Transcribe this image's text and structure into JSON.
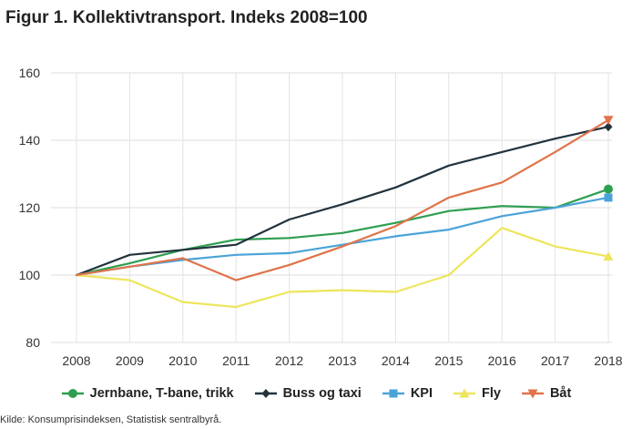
{
  "chart_data": {
    "type": "line",
    "title": "Figur 1. Kollektivtransport. Indeks 2008=100",
    "xlabel": "",
    "ylabel": "",
    "x": [
      "2008",
      "2009",
      "2010",
      "2011",
      "2012",
      "2013",
      "2014",
      "2015",
      "2016",
      "2017",
      "2018"
    ],
    "ylim": [
      80,
      160
    ],
    "yticks": [
      "80",
      "100",
      "120",
      "140",
      "160"
    ],
    "grid": true,
    "legend_position": "bottom",
    "series": [
      {
        "name": "Jernbane, T-bane, trikk",
        "color": "#2e9e4f",
        "marker": "circle",
        "values": [
          100,
          103.5,
          107.5,
          110.5,
          111,
          112.5,
          115.5,
          119,
          120.5,
          120,
          125.5
        ]
      },
      {
        "name": "Buss og taxi",
        "color": "#22333d",
        "marker": "diamond",
        "values": [
          100,
          106,
          107.5,
          109,
          116.5,
          121,
          126,
          132.5,
          136.5,
          140.5,
          144
        ]
      },
      {
        "name": "KPI",
        "color": "#4aa3d8",
        "marker": "square",
        "values": [
          100,
          102.5,
          104.5,
          106,
          106.5,
          109,
          111.5,
          113.5,
          117.5,
          120,
          123
        ]
      },
      {
        "name": "Fly",
        "color": "#ede55c",
        "marker": "triangle-up",
        "values": [
          100,
          98.5,
          92,
          90.5,
          95,
          95.5,
          95,
          100,
          114,
          108.5,
          105.5
        ]
      },
      {
        "name": "Båt",
        "color": "#e0734a",
        "marker": "triangle-down",
        "values": [
          100,
          102.5,
          105,
          98.5,
          103,
          108.5,
          114.5,
          123,
          127.5,
          136.5,
          146
        ]
      }
    ]
  },
  "source_text": "Kilde: Konsumprisindeksen, Statistisk sentralbyrå."
}
